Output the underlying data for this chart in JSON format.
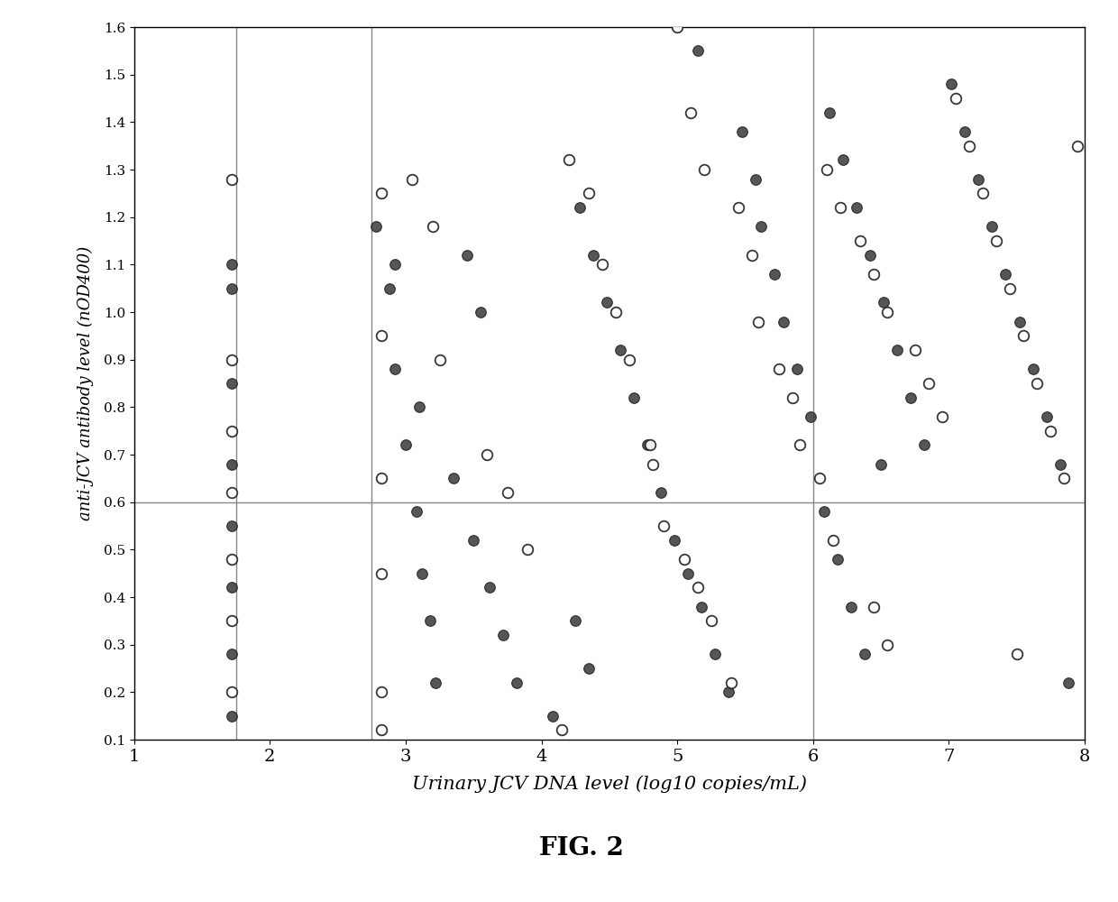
{
  "title": "FIG. 2",
  "xlabel": "Urinary JCV DNA level (log10 copies/mL)",
  "ylabel": "anti-JCV antibody level (nOD400)",
  "xlim": [
    1,
    8
  ],
  "ylim": [
    0.1,
    1.6
  ],
  "xticks": [
    1,
    2,
    3,
    4,
    5,
    6,
    7,
    8
  ],
  "yticks": [
    0.1,
    0.2,
    0.3,
    0.4,
    0.5,
    0.6,
    0.7,
    0.8,
    0.9,
    1.0,
    1.1,
    1.2,
    1.3,
    1.4,
    1.5,
    1.6
  ],
  "hline_y": 0.6,
  "vline1_x": 1.75,
  "vline2_x": 2.75,
  "vline3_x": 6.0,
  "bg_color": "#ffffff",
  "open_color": "white",
  "filled_color": "#444444",
  "marker_edge_color": "#222222",
  "open_points": [
    [
      1.72,
      1.28
    ],
    [
      1.72,
      0.9
    ],
    [
      1.72,
      0.75
    ],
    [
      1.72,
      0.62
    ],
    [
      1.72,
      0.48
    ],
    [
      1.72,
      0.35
    ],
    [
      1.72,
      0.2
    ],
    [
      2.82,
      1.25
    ],
    [
      2.82,
      0.95
    ],
    [
      2.82,
      0.65
    ],
    [
      2.82,
      0.45
    ],
    [
      2.82,
      0.2
    ],
    [
      2.82,
      0.12
    ],
    [
      3.05,
      1.28
    ],
    [
      3.2,
      1.18
    ],
    [
      3.25,
      0.9
    ],
    [
      3.6,
      0.7
    ],
    [
      3.75,
      0.62
    ],
    [
      3.9,
      0.5
    ],
    [
      4.15,
      0.12
    ],
    [
      4.2,
      1.32
    ],
    [
      4.35,
      1.25
    ],
    [
      4.45,
      1.1
    ],
    [
      4.55,
      1.0
    ],
    [
      4.65,
      0.9
    ],
    [
      4.8,
      0.72
    ],
    [
      4.82,
      0.68
    ],
    [
      4.9,
      0.55
    ],
    [
      5.05,
      0.48
    ],
    [
      5.15,
      0.42
    ],
    [
      5.25,
      0.35
    ],
    [
      5.4,
      0.22
    ],
    [
      5.0,
      1.6
    ],
    [
      5.1,
      1.42
    ],
    [
      5.2,
      1.3
    ],
    [
      5.45,
      1.22
    ],
    [
      5.55,
      1.12
    ],
    [
      5.6,
      0.98
    ],
    [
      5.75,
      0.88
    ],
    [
      5.85,
      0.82
    ],
    [
      5.9,
      0.72
    ],
    [
      6.05,
      0.65
    ],
    [
      6.15,
      0.52
    ],
    [
      6.45,
      0.38
    ],
    [
      6.55,
      0.3
    ],
    [
      6.1,
      1.3
    ],
    [
      6.2,
      1.22
    ],
    [
      6.35,
      1.15
    ],
    [
      6.45,
      1.08
    ],
    [
      6.55,
      1.0
    ],
    [
      6.75,
      0.92
    ],
    [
      6.85,
      0.85
    ],
    [
      6.95,
      0.78
    ],
    [
      7.05,
      1.45
    ],
    [
      7.15,
      1.35
    ],
    [
      7.25,
      1.25
    ],
    [
      7.35,
      1.15
    ],
    [
      7.45,
      1.05
    ],
    [
      7.55,
      0.95
    ],
    [
      7.65,
      0.85
    ],
    [
      7.75,
      0.75
    ],
    [
      7.85,
      0.65
    ],
    [
      7.5,
      0.28
    ],
    [
      7.95,
      1.35
    ]
  ],
  "filled_points": [
    [
      1.72,
      1.1
    ],
    [
      1.72,
      1.05
    ],
    [
      1.72,
      0.85
    ],
    [
      1.72,
      0.68
    ],
    [
      1.72,
      0.55
    ],
    [
      1.72,
      0.42
    ],
    [
      1.72,
      0.28
    ],
    [
      1.72,
      0.15
    ],
    [
      2.78,
      1.18
    ],
    [
      2.88,
      1.05
    ],
    [
      2.92,
      0.88
    ],
    [
      3.0,
      0.72
    ],
    [
      3.08,
      0.58
    ],
    [
      3.12,
      0.45
    ],
    [
      3.18,
      0.35
    ],
    [
      3.22,
      0.22
    ],
    [
      2.92,
      1.1
    ],
    [
      3.1,
      0.8
    ],
    [
      3.35,
      0.65
    ],
    [
      3.5,
      0.52
    ],
    [
      3.62,
      0.42
    ],
    [
      3.72,
      0.32
    ],
    [
      3.82,
      0.22
    ],
    [
      4.08,
      0.15
    ],
    [
      3.45,
      1.12
    ],
    [
      3.55,
      1.0
    ],
    [
      4.28,
      1.22
    ],
    [
      4.38,
      1.12
    ],
    [
      4.48,
      1.02
    ],
    [
      4.58,
      0.92
    ],
    [
      4.68,
      0.82
    ],
    [
      4.78,
      0.72
    ],
    [
      4.88,
      0.62
    ],
    [
      4.98,
      0.52
    ],
    [
      5.08,
      0.45
    ],
    [
      5.18,
      0.38
    ],
    [
      5.28,
      0.28
    ],
    [
      5.38,
      0.2
    ],
    [
      5.15,
      1.55
    ],
    [
      5.48,
      1.38
    ],
    [
      5.58,
      1.28
    ],
    [
      5.62,
      1.18
    ],
    [
      5.72,
      1.08
    ],
    [
      5.78,
      0.98
    ],
    [
      5.88,
      0.88
    ],
    [
      5.98,
      0.78
    ],
    [
      6.08,
      0.58
    ],
    [
      6.18,
      0.48
    ],
    [
      6.28,
      0.38
    ],
    [
      6.38,
      0.28
    ],
    [
      6.12,
      1.42
    ],
    [
      6.22,
      1.32
    ],
    [
      6.32,
      1.22
    ],
    [
      6.42,
      1.12
    ],
    [
      6.52,
      1.02
    ],
    [
      6.62,
      0.92
    ],
    [
      6.72,
      0.82
    ],
    [
      6.82,
      0.72
    ],
    [
      7.02,
      1.48
    ],
    [
      7.12,
      1.38
    ],
    [
      7.22,
      1.28
    ],
    [
      7.32,
      1.18
    ],
    [
      7.42,
      1.08
    ],
    [
      7.52,
      0.98
    ],
    [
      7.62,
      0.88
    ],
    [
      7.72,
      0.78
    ],
    [
      7.82,
      0.68
    ],
    [
      7.88,
      0.22
    ],
    [
      6.5,
      0.68
    ],
    [
      4.25,
      0.35
    ],
    [
      4.35,
      0.25
    ]
  ]
}
